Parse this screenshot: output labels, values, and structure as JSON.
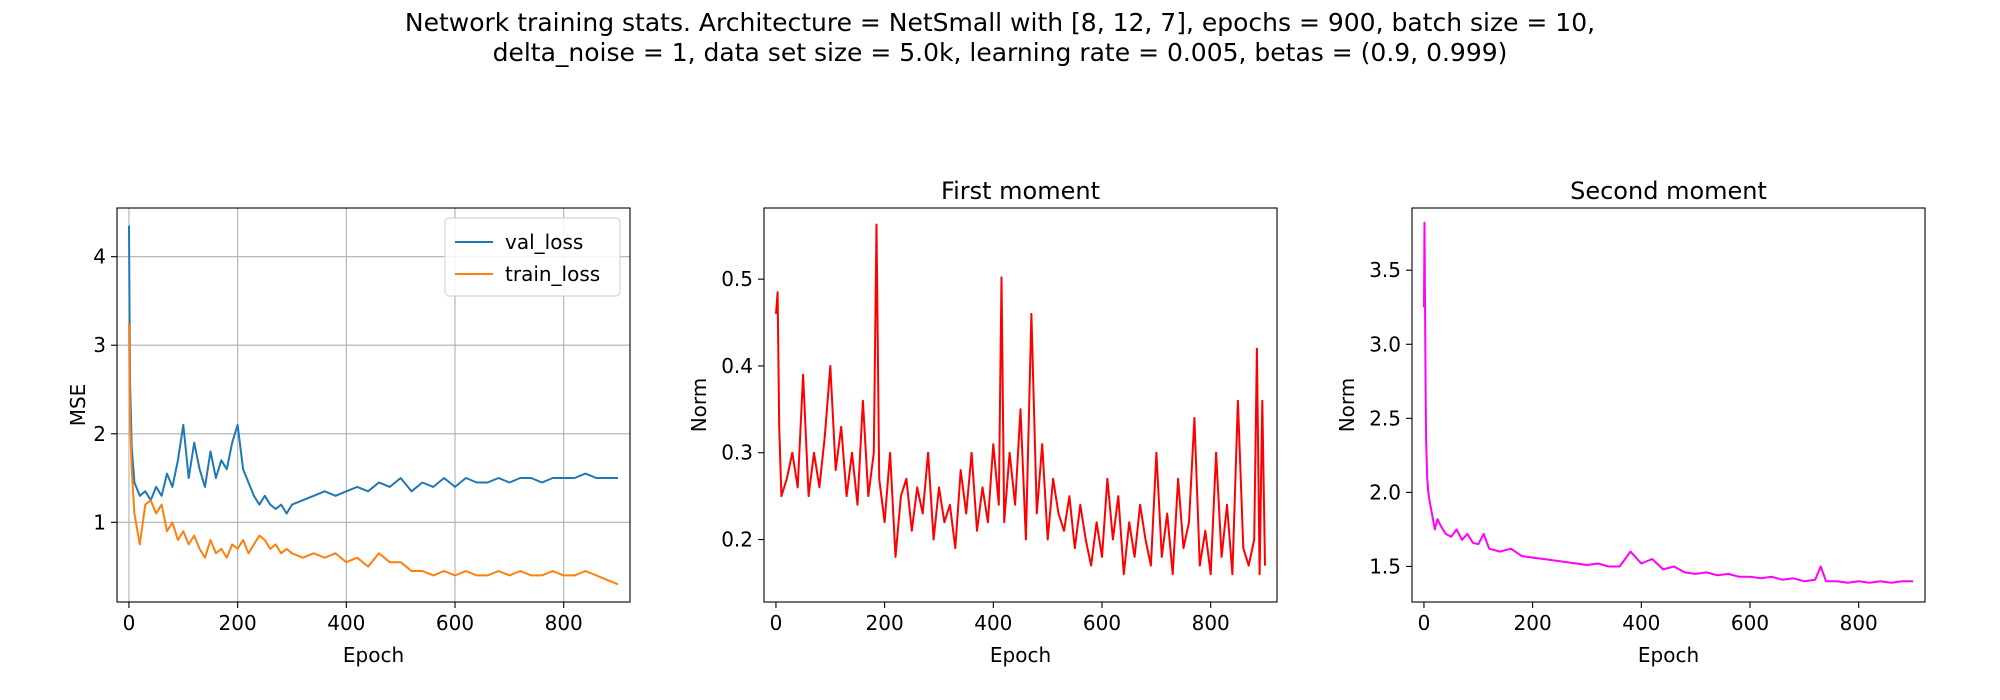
{
  "figure": {
    "suptitle_line1": "Network training stats. Architecture = NetSmall with [8, 12, 7], epochs = 900, batch size = 10,",
    "suptitle_line2": "delta_noise = 1, data set size = 5.0k, learning rate = 0.005, betas = (0.9, 0.999)"
  },
  "colors": {
    "val_loss": "#1f77b4",
    "train_loss": "#ff7f0e",
    "first_moment": "#ff0000",
    "second_moment": "#ff00ff",
    "grid": "#b0b0b0"
  },
  "chart_data": [
    {
      "type": "line",
      "title": "",
      "xlabel": "Epoch",
      "ylabel": "MSE",
      "xlim": [
        -22,
        922
      ],
      "ylim": [
        0.1,
        4.55
      ],
      "xticks": [
        0,
        200,
        400,
        600,
        800
      ],
      "yticks": [
        1,
        2,
        3,
        4
      ],
      "grid": true,
      "legend": "top-right",
      "series": [
        {
          "name": "val_loss",
          "color": "#1f77b4",
          "x": [
            0,
            2,
            5,
            10,
            20,
            30,
            40,
            50,
            60,
            70,
            80,
            90,
            100,
            110,
            120,
            130,
            140,
            150,
            160,
            170,
            180,
            190,
            200,
            210,
            220,
            230,
            240,
            250,
            260,
            270,
            280,
            290,
            300,
            320,
            340,
            360,
            380,
            400,
            420,
            440,
            460,
            480,
            500,
            520,
            540,
            560,
            580,
            600,
            620,
            640,
            660,
            680,
            700,
            720,
            740,
            760,
            780,
            800,
            820,
            840,
            860,
            880,
            900
          ],
          "values": [
            4.35,
            2.6,
            1.85,
            1.45,
            1.3,
            1.35,
            1.25,
            1.4,
            1.3,
            1.55,
            1.4,
            1.7,
            2.1,
            1.5,
            1.9,
            1.6,
            1.4,
            1.8,
            1.5,
            1.7,
            1.6,
            1.9,
            2.1,
            1.6,
            1.45,
            1.3,
            1.2,
            1.3,
            1.2,
            1.15,
            1.2,
            1.1,
            1.2,
            1.25,
            1.3,
            1.35,
            1.3,
            1.35,
            1.4,
            1.35,
            1.45,
            1.4,
            1.5,
            1.35,
            1.45,
            1.4,
            1.5,
            1.4,
            1.5,
            1.45,
            1.45,
            1.5,
            1.45,
            1.5,
            1.5,
            1.45,
            1.5,
            1.5,
            1.5,
            1.55,
            1.5,
            1.5,
            1.5
          ]
        },
        {
          "name": "train_loss",
          "color": "#ff7f0e",
          "x": [
            0,
            2,
            5,
            10,
            20,
            30,
            40,
            50,
            60,
            70,
            80,
            90,
            100,
            110,
            120,
            130,
            140,
            150,
            160,
            170,
            180,
            190,
            200,
            210,
            220,
            230,
            240,
            250,
            260,
            270,
            280,
            290,
            300,
            320,
            340,
            360,
            380,
            400,
            420,
            440,
            460,
            480,
            500,
            520,
            540,
            560,
            580,
            600,
            620,
            640,
            660,
            680,
            700,
            720,
            740,
            760,
            780,
            800,
            820,
            840,
            860,
            880,
            900
          ],
          "values": [
            3.25,
            2.2,
            1.6,
            1.1,
            0.75,
            1.2,
            1.25,
            1.1,
            1.2,
            0.9,
            1.0,
            0.8,
            0.9,
            0.75,
            0.85,
            0.7,
            0.6,
            0.8,
            0.65,
            0.7,
            0.6,
            0.75,
            0.7,
            0.8,
            0.65,
            0.75,
            0.85,
            0.8,
            0.7,
            0.75,
            0.65,
            0.7,
            0.65,
            0.6,
            0.65,
            0.6,
            0.65,
            0.55,
            0.6,
            0.5,
            0.65,
            0.55,
            0.55,
            0.45,
            0.45,
            0.4,
            0.45,
            0.4,
            0.45,
            0.4,
            0.4,
            0.45,
            0.4,
            0.45,
            0.4,
            0.4,
            0.45,
            0.4,
            0.4,
            0.45,
            0.4,
            0.35,
            0.3
          ]
        }
      ]
    },
    {
      "type": "line",
      "title": "First moment",
      "xlabel": "Epoch",
      "ylabel": "Norm",
      "xlim": [
        -22,
        922
      ],
      "ylim": [
        0.128,
        0.582
      ],
      "xticks": [
        0,
        200,
        400,
        600,
        800
      ],
      "yticks": [
        0.2,
        0.3,
        0.4,
        0.5
      ],
      "grid": false,
      "series": [
        {
          "name": "",
          "color": "#ff0000",
          "x": [
            0,
            3,
            6,
            10,
            20,
            30,
            40,
            50,
            60,
            70,
            80,
            90,
            100,
            110,
            120,
            130,
            140,
            150,
            160,
            170,
            180,
            185,
            190,
            200,
            210,
            220,
            230,
            240,
            250,
            260,
            270,
            280,
            290,
            300,
            310,
            320,
            330,
            340,
            350,
            360,
            370,
            380,
            390,
            400,
            410,
            415,
            420,
            430,
            440,
            450,
            460,
            470,
            480,
            490,
            500,
            510,
            520,
            530,
            540,
            550,
            560,
            570,
            580,
            590,
            600,
            610,
            620,
            630,
            640,
            650,
            660,
            670,
            680,
            690,
            700,
            710,
            720,
            730,
            740,
            750,
            760,
            770,
            780,
            790,
            800,
            810,
            820,
            830,
            840,
            850,
            860,
            870,
            880,
            885,
            890,
            895,
            900
          ],
          "values": [
            0.46,
            0.485,
            0.33,
            0.25,
            0.27,
            0.3,
            0.26,
            0.39,
            0.25,
            0.3,
            0.26,
            0.32,
            0.4,
            0.28,
            0.33,
            0.25,
            0.3,
            0.24,
            0.36,
            0.25,
            0.3,
            0.563,
            0.27,
            0.22,
            0.3,
            0.18,
            0.25,
            0.27,
            0.21,
            0.26,
            0.23,
            0.3,
            0.2,
            0.26,
            0.22,
            0.24,
            0.19,
            0.28,
            0.23,
            0.3,
            0.21,
            0.26,
            0.22,
            0.31,
            0.24,
            0.502,
            0.22,
            0.3,
            0.24,
            0.35,
            0.2,
            0.46,
            0.23,
            0.31,
            0.2,
            0.27,
            0.23,
            0.21,
            0.25,
            0.19,
            0.24,
            0.2,
            0.17,
            0.22,
            0.18,
            0.27,
            0.2,
            0.25,
            0.16,
            0.22,
            0.18,
            0.24,
            0.2,
            0.17,
            0.3,
            0.18,
            0.23,
            0.16,
            0.27,
            0.19,
            0.22,
            0.34,
            0.17,
            0.21,
            0.16,
            0.3,
            0.18,
            0.24,
            0.16,
            0.36,
            0.19,
            0.17,
            0.2,
            0.42,
            0.16,
            0.36,
            0.17
          ]
        }
      ]
    },
    {
      "type": "line",
      "title": "Second moment",
      "xlabel": "Epoch",
      "ylabel": "Norm",
      "xlim": [
        -22,
        922
      ],
      "ylim": [
        1.26,
        3.92
      ],
      "xticks": [
        0,
        200,
        400,
        600,
        800
      ],
      "yticks": [
        1.5,
        2.0,
        2.5,
        3.0,
        3.5
      ],
      "grid": false,
      "series": [
        {
          "name": "",
          "color": "#ff00ff",
          "x": [
            0,
            1,
            2,
            3,
            4,
            6,
            8,
            10,
            15,
            20,
            25,
            30,
            40,
            50,
            60,
            70,
            80,
            90,
            100,
            110,
            120,
            140,
            160,
            180,
            200,
            220,
            240,
            260,
            280,
            300,
            320,
            340,
            360,
            380,
            400,
            420,
            440,
            460,
            480,
            500,
            520,
            540,
            560,
            580,
            600,
            620,
            640,
            660,
            680,
            700,
            720,
            730,
            740,
            760,
            780,
            800,
            820,
            840,
            860,
            880,
            900
          ],
          "values": [
            3.25,
            3.82,
            3.3,
            2.7,
            2.35,
            2.1,
            2.0,
            1.95,
            1.85,
            1.75,
            1.82,
            1.78,
            1.72,
            1.7,
            1.75,
            1.68,
            1.72,
            1.66,
            1.65,
            1.72,
            1.62,
            1.6,
            1.62,
            1.57,
            1.56,
            1.55,
            1.54,
            1.53,
            1.52,
            1.51,
            1.52,
            1.5,
            1.5,
            1.6,
            1.52,
            1.55,
            1.48,
            1.5,
            1.46,
            1.45,
            1.46,
            1.44,
            1.45,
            1.43,
            1.43,
            1.42,
            1.43,
            1.41,
            1.42,
            1.4,
            1.41,
            1.5,
            1.4,
            1.4,
            1.39,
            1.4,
            1.39,
            1.4,
            1.39,
            1.4,
            1.4
          ]
        }
      ]
    }
  ]
}
